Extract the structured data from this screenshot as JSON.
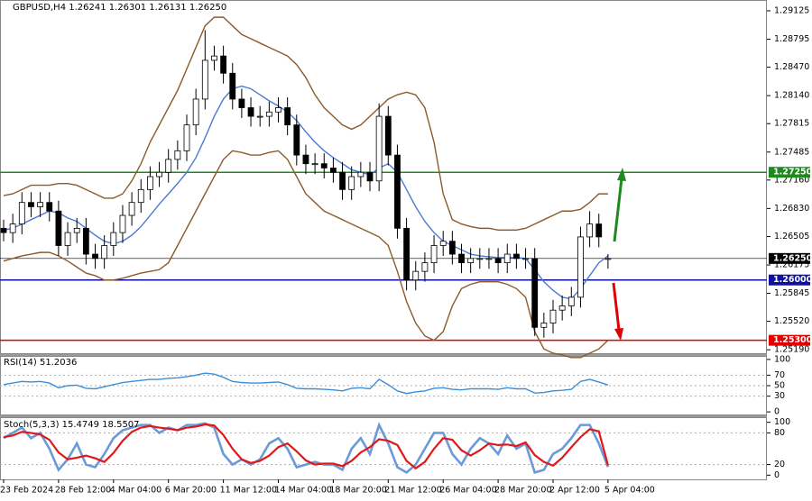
{
  "chart_data": [
    {
      "type": "candlestick",
      "title": "GBPUSD,H4  1.26241 1.26301 1.26131 1.26250",
      "categories": [
        "23 Feb 2024",
        null,
        null,
        null,
        null,
        null,
        "28 Feb 12:00",
        null,
        null,
        null,
        null,
        null,
        "4 Mar 04:00",
        null,
        null,
        null,
        null,
        null,
        "6 Mar 20:00",
        null,
        null,
        null,
        null,
        null,
        "11 Mar 12:00",
        null,
        null,
        null,
        null,
        null,
        "14 Mar 04:00",
        null,
        null,
        null,
        null,
        null,
        "18 Mar 20:00",
        null,
        null,
        null,
        null,
        null,
        "21 Mar 12:00",
        null,
        null,
        null,
        null,
        null,
        "26 Mar 04:00",
        null,
        null,
        null,
        null,
        null,
        "28 Mar 20:00",
        null,
        null,
        null,
        null,
        null,
        "2 Apr 12:00",
        null,
        null,
        null,
        null,
        null,
        "5 Apr 04:00"
      ],
      "open": [
        1.266,
        1.2655,
        1.2665,
        1.269,
        1.2685,
        1.269,
        1.268,
        1.264,
        1.2655,
        1.266,
        1.263,
        1.2625,
        1.264,
        1.2655,
        1.2675,
        1.269,
        1.2705,
        1.272,
        1.2725,
        1.274,
        1.275,
        1.278,
        1.281,
        1.2855,
        1.286,
        1.284,
        1.281,
        1.28,
        1.279,
        1.279,
        1.2795,
        1.28,
        1.278,
        1.2745,
        1.2735,
        1.2735,
        1.273,
        1.2725,
        1.2705,
        1.272,
        1.2725,
        1.2715,
        1.279,
        1.2745,
        1.266,
        1.26,
        1.261,
        1.262,
        1.264,
        1.2645,
        1.263,
        1.262,
        1.2625,
        1.2625,
        1.2625,
        1.262,
        1.263,
        1.2625,
        1.2625,
        1.2545,
        1.255,
        1.2565,
        1.257,
        1.258,
        1.265,
        1.2665,
        1.26241
      ],
      "high": [
        1.267,
        1.2677,
        1.2702,
        1.2702,
        1.2702,
        1.2702,
        1.2692,
        1.2667,
        1.2672,
        1.2672,
        1.2642,
        1.2652,
        1.2667,
        1.2687,
        1.2702,
        1.2717,
        1.2732,
        1.2737,
        1.2752,
        1.2762,
        1.2792,
        1.2822,
        1.289,
        1.2872,
        1.2872,
        1.2852,
        1.2822,
        1.2812,
        1.2802,
        1.2807,
        1.2812,
        1.2812,
        1.2792,
        1.2757,
        1.2747,
        1.2747,
        1.2742,
        1.2737,
        1.2732,
        1.2737,
        1.2737,
        1.2805,
        1.2802,
        1.2757,
        1.2672,
        1.2622,
        1.2632,
        1.2652,
        1.2657,
        1.2657,
        1.2642,
        1.2637,
        1.2637,
        1.2637,
        1.2637,
        1.2642,
        1.2642,
        1.2637,
        1.2637,
        1.2562,
        1.2577,
        1.2582,
        1.2592,
        1.2662,
        1.268,
        1.2677,
        1.26301
      ],
      "low": [
        1.2645,
        1.2643,
        1.2653,
        1.2673,
        1.2673,
        1.2668,
        1.2628,
        1.2628,
        1.2643,
        1.2618,
        1.2613,
        1.2613,
        1.2628,
        1.2643,
        1.2663,
        1.2678,
        1.2693,
        1.2708,
        1.2713,
        1.2728,
        1.2738,
        1.2768,
        1.2798,
        1.2843,
        1.2828,
        1.2798,
        1.2788,
        1.2778,
        1.2778,
        1.2778,
        1.2783,
        1.2768,
        1.2733,
        1.2723,
        1.2723,
        1.2718,
        1.2713,
        1.2693,
        1.2693,
        1.2708,
        1.2703,
        1.2703,
        1.2733,
        1.2648,
        1.2588,
        1.2588,
        1.2598,
        1.2608,
        1.2628,
        1.2618,
        1.2608,
        1.2608,
        1.2613,
        1.2613,
        1.2608,
        1.2608,
        1.2613,
        1.2613,
        1.2535,
        1.2533,
        1.2538,
        1.2553,
        1.2558,
        1.2568,
        1.2638,
        1.2638,
        1.26131
      ],
      "close": [
        1.2655,
        1.2665,
        1.269,
        1.2685,
        1.269,
        1.268,
        1.264,
        1.2655,
        1.266,
        1.263,
        1.2625,
        1.264,
        1.2655,
        1.2675,
        1.269,
        1.2705,
        1.272,
        1.2725,
        1.274,
        1.275,
        1.278,
        1.281,
        1.2855,
        1.286,
        1.284,
        1.281,
        1.28,
        1.279,
        1.279,
        1.2795,
        1.28,
        1.278,
        1.2745,
        1.2735,
        1.2735,
        1.273,
        1.2725,
        1.2705,
        1.272,
        1.2725,
        1.2715,
        1.279,
        1.2745,
        1.266,
        1.26,
        1.261,
        1.262,
        1.264,
        1.2645,
        1.263,
        1.262,
        1.2625,
        1.2625,
        1.2625,
        1.262,
        1.263,
        1.2625,
        1.2625,
        1.2545,
        1.255,
        1.2565,
        1.257,
        1.258,
        1.265,
        1.2665,
        1.265,
        1.2625
      ],
      "series": [
        {
          "color": "#8b5a2b",
          "values": [
            1.2698,
            1.27,
            1.2705,
            1.271,
            1.271,
            1.271,
            1.2712,
            1.2712,
            1.271,
            1.2705,
            1.27,
            1.2695,
            1.2695,
            1.27,
            1.2715,
            1.2735,
            1.276,
            1.278,
            1.28,
            1.282,
            1.2845,
            1.287,
            1.2895,
            1.2905,
            1.2905,
            1.2895,
            1.2885,
            1.288,
            1.2875,
            1.287,
            1.2865,
            1.286,
            1.285,
            1.2835,
            1.2815,
            1.28,
            1.279,
            1.278,
            1.2775,
            1.278,
            1.279,
            1.28,
            1.281,
            1.2815,
            1.2818,
            1.2815,
            1.28,
            1.276,
            1.27,
            1.267,
            1.2665,
            1.2662,
            1.266,
            1.266,
            1.2658,
            1.2658,
            1.2658,
            1.266,
            1.2665,
            1.267,
            1.2675,
            1.268,
            1.268,
            1.2682,
            1.269,
            1.27,
            1.27
          ]
        },
        {
          "color": "#8b5a2b",
          "values": [
            1.2622,
            1.2625,
            1.2628,
            1.263,
            1.2632,
            1.2632,
            1.2628,
            1.2622,
            1.2615,
            1.2608,
            1.2605,
            1.26,
            1.26,
            1.2602,
            1.2605,
            1.2608,
            1.261,
            1.2612,
            1.262,
            1.264,
            1.266,
            1.268,
            1.27,
            1.272,
            1.274,
            1.275,
            1.2748,
            1.2745,
            1.2745,
            1.2748,
            1.275,
            1.274,
            1.272,
            1.27,
            1.269,
            1.268,
            1.2675,
            1.267,
            1.2665,
            1.266,
            1.2655,
            1.265,
            1.264,
            1.261,
            1.2575,
            1.255,
            1.2535,
            1.253,
            1.254,
            1.257,
            1.259,
            1.2595,
            1.2598,
            1.2598,
            1.2598,
            1.2595,
            1.259,
            1.258,
            1.254,
            1.252,
            1.2515,
            1.2513,
            1.251,
            1.251,
            1.2515,
            1.252,
            1.253
          ]
        },
        {
          "color": "#4a7bd0",
          "values": [
            1.2658,
            1.266,
            1.2665,
            1.267,
            1.2675,
            1.268,
            1.2678,
            1.2672,
            1.2668,
            1.266,
            1.2652,
            1.2645,
            1.2642,
            1.2645,
            1.2652,
            1.2662,
            1.2675,
            1.2688,
            1.27,
            1.2712,
            1.2725,
            1.2742,
            1.2765,
            1.279,
            1.281,
            1.2822,
            1.2825,
            1.2822,
            1.2815,
            1.2808,
            1.2802,
            1.2795,
            1.2785,
            1.2772,
            1.276,
            1.275,
            1.2742,
            1.2735,
            1.2728,
            1.2725,
            1.2722,
            1.273,
            1.2735,
            1.2725,
            1.2705,
            1.2685,
            1.2668,
            1.2655,
            1.2645,
            1.264,
            1.2635,
            1.263,
            1.2628,
            1.2627,
            1.2626,
            1.2626,
            1.2626,
            1.2625,
            1.2612,
            1.2598,
            1.2588,
            1.258,
            1.2578,
            1.259,
            1.2605,
            1.262,
            1.2628
          ]
        }
      ],
      "levels": [
        {
          "value": 1.2725,
          "label": "1.27250",
          "color": "#1e8a1e"
        },
        {
          "value": 1.2625,
          "label": "1.26250",
          "color": "#000000"
        },
        {
          "value": 1.26,
          "label": "1.26000",
          "color": "#1010a0"
        },
        {
          "value": 1.253,
          "label": "1.25300",
          "color": "#e00000"
        }
      ],
      "ylim": [
        1.2515,
        1.2925
      ],
      "yticks": [
        1.29125,
        1.28795,
        {
          "value": 1.2847,
          "label": "1.28470"
        },
        {
          "value": 1.2814,
          "label": "1.28140"
        },
        1.27815,
        1.27485,
        {
          "value": 1.2716,
          "label": "1.27160"
        },
        {
          "value": 1.2683,
          "label": "1.26830"
        },
        1.26505,
        1.26175,
        1.25845,
        {
          "value": 1.2552,
          "label": "1.25520"
        },
        {
          "value": 1.2519,
          "label": "1.25190"
        }
      ]
    },
    {
      "type": "line",
      "title": "RSI(14) 51.2036",
      "series": [
        {
          "color": "#3a8fd8",
          "values": [
            52,
            55,
            58,
            57,
            58,
            55,
            46,
            50,
            51,
            45,
            44,
            48,
            52,
            56,
            58,
            60,
            62,
            62,
            64,
            65,
            67,
            70,
            74,
            72,
            66,
            58,
            56,
            55,
            55,
            56,
            57,
            52,
            45,
            44,
            44,
            43,
            42,
            40,
            45,
            46,
            44,
            62,
            52,
            40,
            35,
            38,
            40,
            45,
            46,
            43,
            42,
            44,
            44,
            44,
            43,
            46,
            44,
            44,
            36,
            37,
            40,
            41,
            43,
            58,
            62,
            57,
            51.2036
          ]
        }
      ],
      "ylim": [
        -5,
        105
      ],
      "yticks": [
        100,
        70,
        50,
        30,
        0
      ]
    },
    {
      "type": "line",
      "title": "Stoch(5,3,3) 15.4749 18.5507",
      "series": [
        {
          "color": "#6a9ad8",
          "values": [
            70,
            80,
            90,
            70,
            80,
            50,
            10,
            30,
            60,
            20,
            15,
            40,
            70,
            85,
            90,
            95,
            95,
            80,
            90,
            85,
            95,
            95,
            98,
            90,
            40,
            20,
            30,
            20,
            30,
            60,
            70,
            50,
            15,
            20,
            25,
            20,
            20,
            10,
            50,
            70,
            40,
            95,
            60,
            15,
            5,
            20,
            50,
            80,
            80,
            40,
            20,
            50,
            70,
            60,
            40,
            75,
            50,
            60,
            5,
            10,
            40,
            50,
            70,
            95,
            95,
            60,
            15.4749
          ]
        },
        {
          "color": "#e01818",
          "values": [
            72,
            75,
            82,
            80,
            77,
            67,
            43,
            30,
            33,
            37,
            32,
            25,
            42,
            65,
            82,
            90,
            93,
            90,
            88,
            85,
            90,
            92,
            96,
            94,
            76,
            50,
            30,
            23,
            27,
            37,
            53,
            60,
            45,
            28,
            20,
            22,
            22,
            17,
            27,
            43,
            53,
            68,
            65,
            57,
            27,
            13,
            25,
            50,
            70,
            67,
            47,
            37,
            47,
            60,
            57,
            58,
            55,
            62,
            38,
            25,
            18,
            33,
            53,
            72,
            87,
            83,
            18.5507
          ]
        }
      ],
      "ylim": [
        -8,
        108
      ],
      "yticks": [
        100,
        80,
        20,
        0
      ]
    }
  ]
}
